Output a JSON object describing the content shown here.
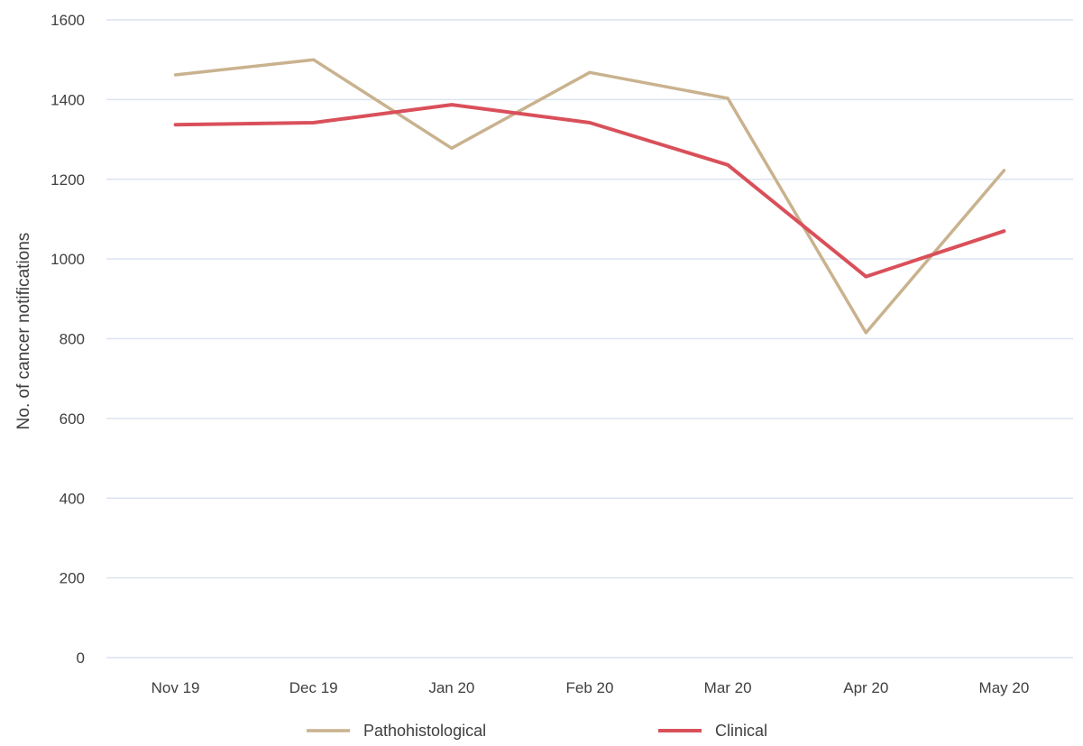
{
  "chart_data": {
    "type": "line",
    "title": "",
    "xlabel": "",
    "ylabel": "No. of cancer notifications",
    "ylim": [
      0,
      1600
    ],
    "yticks": [
      0,
      200,
      400,
      600,
      800,
      1000,
      1200,
      1400,
      1600
    ],
    "grid": true,
    "legend_position": "bottom",
    "categories": [
      "Nov 19",
      "Dec 19",
      "Jan 20",
      "Feb 20",
      "Mar 20",
      "Apr 20",
      "May 20"
    ],
    "series": [
      {
        "name": "Pathohistological",
        "color": "#c9b28e",
        "values": [
          1462,
          1500,
          1278,
          1468,
          1403,
          815,
          1222
        ]
      },
      {
        "name": "Clinical",
        "color": "#d9505a",
        "values": [
          1337,
          1342,
          1387,
          1342,
          1236,
          956,
          1070
        ]
      }
    ]
  }
}
